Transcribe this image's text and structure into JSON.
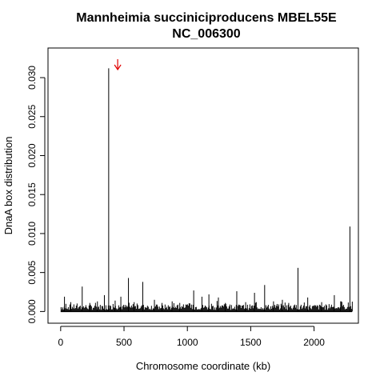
{
  "chart_data": {
    "type": "bar",
    "title": "Mannheimia succiniciproducens MBEL55E",
    "subtitle": "NC_006300",
    "xlabel": "Chromosome coordinate (kb)",
    "ylabel": "DnaA box distribution",
    "xlim": [
      -100,
      2350
    ],
    "ylim": [
      -0.0015,
      0.0338
    ],
    "xticks": [
      0,
      500,
      1000,
      1500,
      2000
    ],
    "xtick_labels": [
      "0",
      "500",
      "1000",
      "1500",
      "2000"
    ],
    "yticks": [
      0.0,
      0.005,
      0.01,
      0.015,
      0.02,
      0.025,
      0.03
    ],
    "ytick_labels": [
      "0.000",
      "0.005",
      "0.010",
      "0.015",
      "0.020",
      "0.025",
      "0.030"
    ],
    "grid": false,
    "legend": "none",
    "annotation": {
      "type": "arrow",
      "color": "#e00000",
      "x_kb": 450,
      "direction": "down"
    },
    "peaks": [
      {
        "x": 30,
        "y": 0.0019
      },
      {
        "x": 80,
        "y": 0.0012
      },
      {
        "x": 170,
        "y": 0.0032
      },
      {
        "x": 230,
        "y": 0.0011
      },
      {
        "x": 290,
        "y": 0.0013
      },
      {
        "x": 345,
        "y": 0.0021
      },
      {
        "x": 379,
        "y": 0.0312
      },
      {
        "x": 430,
        "y": 0.0014
      },
      {
        "x": 475,
        "y": 0.0019
      },
      {
        "x": 535,
        "y": 0.0043
      },
      {
        "x": 580,
        "y": 0.0012
      },
      {
        "x": 648,
        "y": 0.0038
      },
      {
        "x": 740,
        "y": 0.0015
      },
      {
        "x": 800,
        "y": 0.0011
      },
      {
        "x": 880,
        "y": 0.0013
      },
      {
        "x": 940,
        "y": 0.0011
      },
      {
        "x": 1050,
        "y": 0.0027
      },
      {
        "x": 1115,
        "y": 0.0019
      },
      {
        "x": 1170,
        "y": 0.0022
      },
      {
        "x": 1245,
        "y": 0.0018
      },
      {
        "x": 1300,
        "y": 0.0011
      },
      {
        "x": 1390,
        "y": 0.0026
      },
      {
        "x": 1460,
        "y": 0.0012
      },
      {
        "x": 1530,
        "y": 0.0024
      },
      {
        "x": 1610,
        "y": 0.0034
      },
      {
        "x": 1680,
        "y": 0.0013
      },
      {
        "x": 1750,
        "y": 0.0015
      },
      {
        "x": 1800,
        "y": 0.0011
      },
      {
        "x": 1873,
        "y": 0.0056
      },
      {
        "x": 1950,
        "y": 0.0018
      },
      {
        "x": 2060,
        "y": 0.0012
      },
      {
        "x": 2160,
        "y": 0.0021
      },
      {
        "x": 2210,
        "y": 0.0013
      },
      {
        "x": 2283,
        "y": 0.0109
      }
    ]
  }
}
